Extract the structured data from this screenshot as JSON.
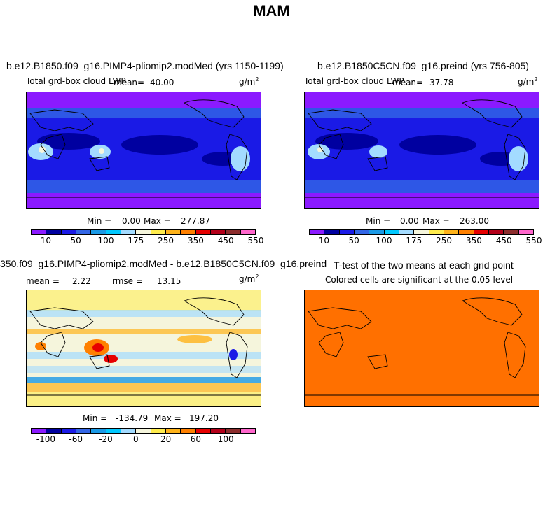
{
  "page_title": "MAM",
  "chart_data": [
    {
      "type": "heatmap",
      "title": "b.e12.B1850.f09_g16.PIMP4-pliomip2.modMed (yrs 1150-1199)",
      "subtitle": "Total grd-box cloud LWP",
      "mean_label": "mean=",
      "mean_value": "40.00",
      "unit": "g/m",
      "unit_exp": "2",
      "min_label": "Min =",
      "min_value": "0.00",
      "max_label": "Max =",
      "max_value": "277.87",
      "colorbar": {
        "colors": [
          "#8b1aff",
          "#0000a0",
          "#1a1ae6",
          "#3366e6",
          "#1a99e6",
          "#00c8ff",
          "#a3dbff",
          "#f5f5dc",
          "#ffec4d",
          "#ffb31a",
          "#ff8000",
          "#e60000",
          "#b3001a",
          "#8c2d2d",
          "#ff66cc"
        ],
        "tick_labels": [
          "10",
          "50",
          "100",
          "175",
          "250",
          "350",
          "450",
          "550"
        ]
      }
    },
    {
      "type": "heatmap",
      "title": "b.e12.B1850C5CN.f09_g16.preind (yrs 756-805)",
      "subtitle": "Total grd-box cloud LWP",
      "mean_label": "mean=",
      "mean_value": "37.78",
      "unit": "g/m",
      "unit_exp": "2",
      "min_label": "Min =",
      "min_value": "0.00",
      "max_label": "Max =",
      "max_value": "263.00",
      "colorbar": {
        "colors": [
          "#8b1aff",
          "#0000a0",
          "#1a1ae6",
          "#3366e6",
          "#1a99e6",
          "#00c8ff",
          "#a3dbff",
          "#f5f5dc",
          "#ffec4d",
          "#ffb31a",
          "#ff8000",
          "#e60000",
          "#b3001a",
          "#8c2d2d",
          "#ff66cc"
        ],
        "tick_labels": [
          "10",
          "50",
          "100",
          "175",
          "250",
          "350",
          "450",
          "550"
        ]
      }
    },
    {
      "type": "heatmap",
      "title": "350.f09_g16.PIMP4-pliomip2.modMed - b.e12.B1850C5CN.f09_g16.preind",
      "mean_label": "mean =",
      "mean_value": "2.22",
      "rmse_label": "rmse =",
      "rmse_value": "13.15",
      "unit": "g/m",
      "unit_exp": "2",
      "min_label": "Min =",
      "min_value": "-134.79",
      "max_label": "Max =",
      "max_value": "197.20",
      "colorbar": {
        "colors": [
          "#8b1aff",
          "#0000a0",
          "#1a1ae6",
          "#3366e6",
          "#1a99e6",
          "#00c8ff",
          "#a3dbff",
          "#f5f5dc",
          "#ffec4d",
          "#ffb31a",
          "#ff8000",
          "#e60000",
          "#b3001a",
          "#8c2d2d",
          "#ff66cc"
        ],
        "tick_labels": [
          "-100",
          "-60",
          "-20",
          "0",
          "20",
          "60",
          "100"
        ]
      }
    },
    {
      "type": "heatmap",
      "title": "T-test of the two means at each grid point",
      "subtitle": "Colored cells are significant at the 0.05 level",
      "fill_color": "#ff7000"
    }
  ]
}
